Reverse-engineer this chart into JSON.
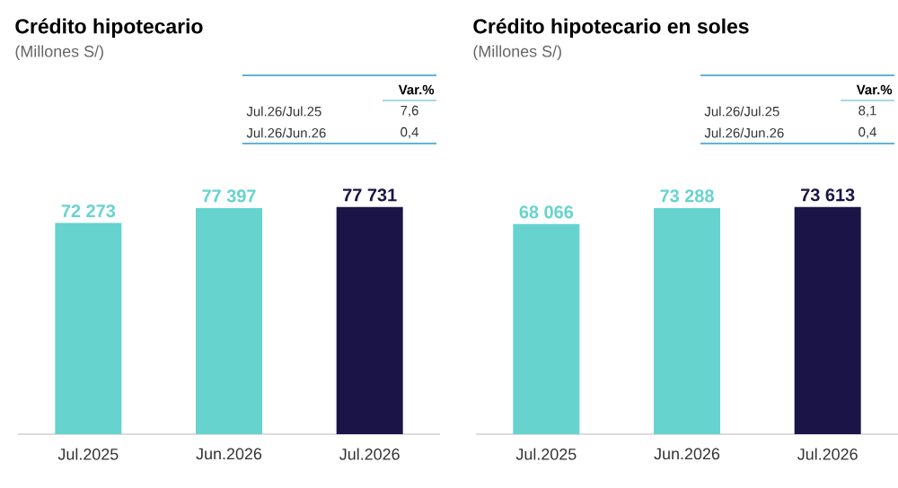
{
  "chart_data": [
    {
      "type": "bar",
      "title": "Crédito hipotecario",
      "subtitle": "(Millones S/)",
      "categories": [
        "Jul.2025",
        "Jun.2026",
        "Jul.2026"
      ],
      "values": [
        72273,
        77397,
        77731
      ],
      "colors": [
        "#66d3cf",
        "#66d3cf",
        "#1b1547"
      ],
      "value_labels": [
        "72 273",
        "77 397",
        "77 731"
      ],
      "annotations": [
        "Var.%",
        "Jul.26/Jul.25",
        "7,6",
        "Jul.26/Jun.26",
        "0,4"
      ]
    },
    {
      "type": "bar",
      "title": "Crédito hipotecario en soles",
      "subtitle": "(Millones S/)",
      "categories": [
        "Jul.2025",
        "Jun.2026",
        "Jul.2026"
      ],
      "values": [
        68066,
        73288,
        73613
      ],
      "colors": [
        "#66d3cf",
        "#66d3cf",
        "#1b1547"
      ],
      "value_labels": [
        "68 066",
        "73 288",
        "73 613"
      ],
      "annotations": [
        "Var.%",
        "Jul.26/Jul.25",
        "8,1",
        "Jul.26/Jun.26",
        "0,4"
      ]
    }
  ]
}
